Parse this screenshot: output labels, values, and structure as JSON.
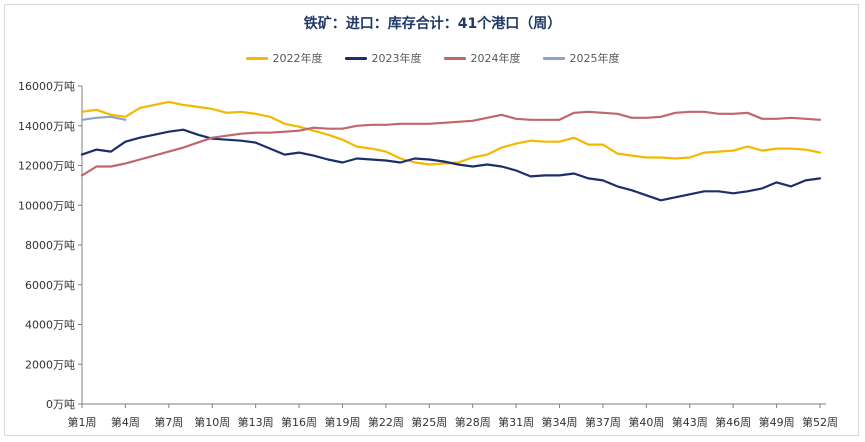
{
  "chart_data": {
    "type": "line",
    "title": "铁矿：进口：库存合计：41个港口（周）",
    "xlabel": "",
    "ylabel": "",
    "ylim": [
      0,
      16000
    ],
    "y_ticks": [
      "0万吨",
      "2000万吨",
      "4000万吨",
      "6000万吨",
      "8000万吨",
      "10000万吨",
      "12000万吨",
      "14000万吨",
      "16000万吨"
    ],
    "y_tick_values": [
      0,
      2000,
      4000,
      6000,
      8000,
      10000,
      12000,
      14000,
      16000
    ],
    "x_tick_labels": [
      "第1周",
      "第4周",
      "第7周",
      "第10周",
      "第13周",
      "第16周",
      "第19周",
      "第22周",
      "第25周",
      "第28周",
      "第31周",
      "第34周",
      "第37周",
      "第40周",
      "第43周",
      "第46周",
      "第49周",
      "第52周"
    ],
    "x_tick_weeks": [
      1,
      4,
      7,
      10,
      13,
      16,
      19,
      22,
      25,
      28,
      31,
      34,
      37,
      40,
      43,
      46,
      49,
      52
    ],
    "weeks": 52,
    "grid": false,
    "legend_position": "top",
    "series": [
      {
        "name": "2022年度",
        "color": "#f5b800",
        "values": [
          14700,
          14800,
          14550,
          14450,
          14900,
          15050,
          15200,
          15050,
          14950,
          14850,
          14650,
          14700,
          14600,
          14450,
          14100,
          13950,
          13750,
          13550,
          13300,
          12950,
          12850,
          12700,
          12350,
          12150,
          12050,
          12100,
          12150,
          12400,
          12550,
          12900,
          13100,
          13250,
          13200,
          13200,
          13400,
          13050,
          13050,
          12600,
          12500,
          12400,
          12400,
          12350,
          12400,
          12650,
          12700,
          12750,
          12950,
          12750,
          12850,
          12850,
          12800,
          12650
        ]
      },
      {
        "name": "2023年度",
        "color": "#1b2f6b",
        "values": [
          12550,
          12800,
          12700,
          13200,
          13400,
          13550,
          13700,
          13800,
          13550,
          13350,
          13300,
          13250,
          13150,
          12850,
          12550,
          12650,
          12500,
          12300,
          12150,
          12350,
          12300,
          12250,
          12150,
          12350,
          12300,
          12200,
          12050,
          11950,
          12050,
          11950,
          11750,
          11450,
          11500,
          11500,
          11600,
          11350,
          11250,
          10950,
          10750,
          10500,
          10250,
          10400,
          10550,
          10700,
          10700,
          10600,
          10700,
          10850,
          11150,
          10950,
          11250,
          11350
        ]
      },
      {
        "name": "2024年度",
        "color": "#c0676a",
        "values": [
          11500,
          11950,
          11950,
          12100,
          12300,
          12500,
          12700,
          12900,
          13150,
          13400,
          13500,
          13600,
          13650,
          13650,
          13700,
          13750,
          13900,
          13850,
          13850,
          14000,
          14050,
          14050,
          14100,
          14100,
          14100,
          14150,
          14200,
          14250,
          14400,
          14550,
          14350,
          14300,
          14300,
          14300,
          14650,
          14700,
          14650,
          14600,
          14400,
          14400,
          14450,
          14650,
          14700,
          14700,
          14600,
          14600,
          14650,
          14350,
          14350,
          14400,
          14350,
          14300
        ]
      },
      {
        "name": "2025年度",
        "color": "#8ea3c8",
        "values": [
          14300,
          14400,
          14450,
          14300
        ]
      }
    ]
  }
}
